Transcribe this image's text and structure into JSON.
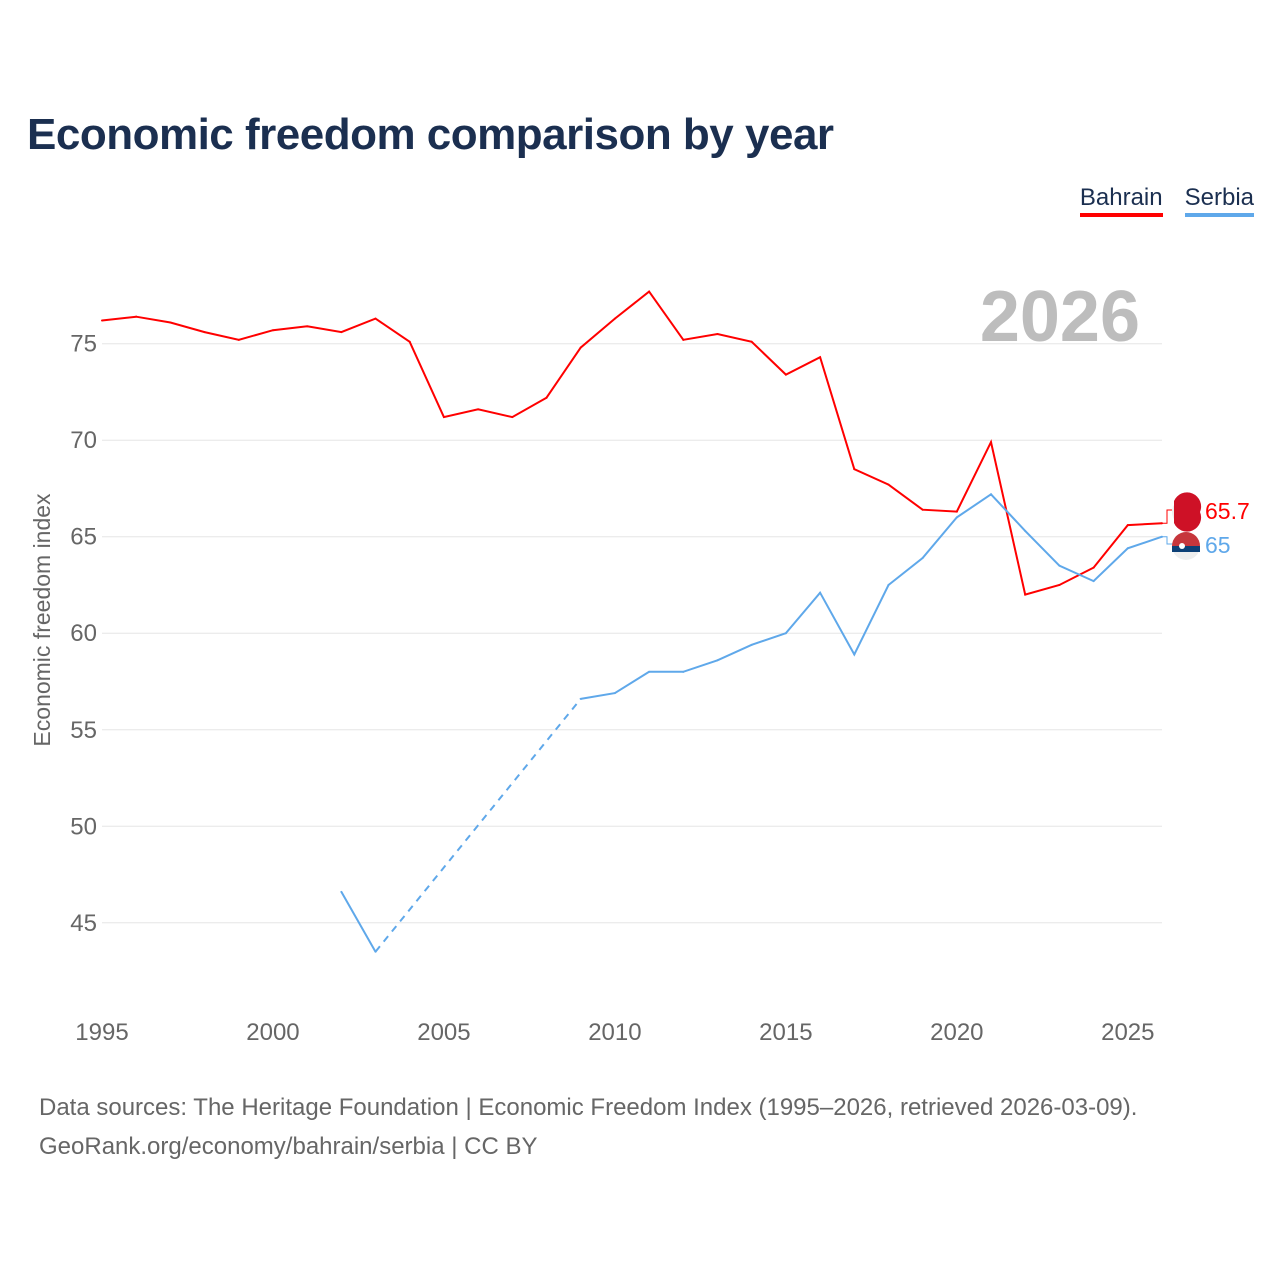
{
  "title": "Economic freedom comparison by year",
  "legend": [
    {
      "label": "Bahrain",
      "color": "#ff0000"
    },
    {
      "label": "Serbia",
      "color": "#5fa8ea"
    }
  ],
  "year_watermark": "2026",
  "source_line1": "Data sources: The Heritage Foundation | Economic Freedom Index (1995–2026, retrieved 2026-03-09).",
  "source_line2": "GeoRank.org/economy/bahrain/serbia | CC BY",
  "chart_data": {
    "type": "line",
    "title": "Economic freedom comparison by year",
    "xlabel": "",
    "ylabel": "Economic freedom index",
    "xlim": [
      1995,
      2026
    ],
    "ylim": [
      41,
      78.3
    ],
    "xticks": [
      1995,
      2000,
      2005,
      2010,
      2015,
      2020,
      2025
    ],
    "yticks": [
      45,
      50,
      55,
      60,
      65,
      70,
      75
    ],
    "grid": true,
    "legend_position": "top-right",
    "series": [
      {
        "name": "Bahrain",
        "color": "#ff0000",
        "end_label": "65.7",
        "x": [
          1995,
          1996,
          1997,
          1998,
          1999,
          2000,
          2001,
          2002,
          2003,
          2004,
          2005,
          2006,
          2007,
          2008,
          2009,
          2010,
          2011,
          2012,
          2013,
          2014,
          2015,
          2016,
          2017,
          2018,
          2019,
          2020,
          2021,
          2022,
          2023,
          2024,
          2025,
          2026
        ],
        "y": [
          76.2,
          76.4,
          76.1,
          75.6,
          75.2,
          75.7,
          75.9,
          75.6,
          76.3,
          75.1,
          71.2,
          71.6,
          71.2,
          72.2,
          74.8,
          76.3,
          77.7,
          75.2,
          75.5,
          75.1,
          73.4,
          74.3,
          68.5,
          67.7,
          66.4,
          66.3,
          69.9,
          62.0,
          62.5,
          63.4,
          65.6,
          65.7
        ]
      },
      {
        "name": "Serbia",
        "color": "#5fa8ea",
        "end_label": "65",
        "x": [
          2002,
          2003,
          2009,
          2010,
          2011,
          2012,
          2013,
          2014,
          2015,
          2016,
          2017,
          2018,
          2019,
          2020,
          2021,
          2022,
          2023,
          2024,
          2025,
          2026
        ],
        "y": [
          46.6,
          43.5,
          56.6,
          56.9,
          58.0,
          58.0,
          58.6,
          59.4,
          60.0,
          62.1,
          58.9,
          62.5,
          63.9,
          66.0,
          67.2,
          65.3,
          63.5,
          62.7,
          64.4,
          65.0
        ],
        "gap_after": [
          2003
        ]
      }
    ]
  }
}
